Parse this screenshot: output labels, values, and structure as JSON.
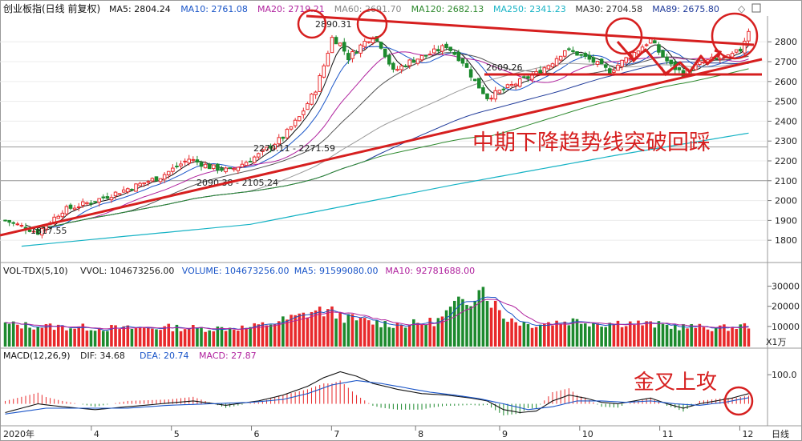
{
  "header": {
    "title": "创业板指(日线 前复权)",
    "ma": [
      {
        "label": "MA5: 2804.24",
        "color": "#111111"
      },
      {
        "label": "MA10: 2761.08",
        "color": "#1a55c8"
      },
      {
        "label": "MA20: 2719.21",
        "color": "#b0229e"
      },
      {
        "label": "MA60: 2691.70",
        "color": "#888888"
      },
      {
        "label": "MA120: 2682.13",
        "color": "#2f8a2f"
      },
      {
        "label": "MA250: 2341.23",
        "color": "#17b3c5"
      },
      {
        "label": "MA30: 2704.58",
        "color": "#333333"
      },
      {
        "label": "MA89: 2675.80",
        "color": "#1f3a9a"
      }
    ]
  },
  "volume_header": {
    "name": "VOL-TDX(5,10)",
    "items": [
      {
        "label": "VVOL: 104673256.00",
        "color": "#222222"
      },
      {
        "label": "VOLUME: 104673256.00",
        "color": "#1a55c8"
      },
      {
        "label": "MA5: 91599080.00",
        "color": "#1a55c8"
      },
      {
        "label": "MA10: 92781688.00",
        "color": "#b0229e"
      }
    ],
    "unit": "X1万"
  },
  "macd_header": {
    "name": "MACD(12,26,9)",
    "items": [
      {
        "label": "DIF: 34.68",
        "color": "#222222"
      },
      {
        "label": "DEA: 20.74",
        "color": "#1a55c8"
      },
      {
        "label": "MACD: 27.87",
        "color": "#b0229e"
      }
    ]
  },
  "annotations": {
    "main_text": "中期下降趋势线突破回踩",
    "macd_text": "金叉上攻",
    "low_label": "1817.55",
    "high_label": "2890.31",
    "mid_label": "2609.26",
    "gap1_label": "2270.11 - 2271.59",
    "gap2_label": "2090.38 - 2105.24"
  },
  "footer": {
    "year_label": "2020年",
    "months": [
      "4",
      "5",
      "6",
      "7",
      "8",
      "9",
      "10",
      "11",
      "12"
    ],
    "period_label": "日线"
  },
  "colors": {
    "up": "#e8292b",
    "down": "#1d8a2e",
    "trend": "#d61f1f",
    "grid": "#e4e4e4",
    "separator": "#9a9a9a"
  },
  "chart_data": [
    {
      "type": "candlestick",
      "title": "创业板指(日线 前复权)",
      "yticks": [
        1800,
        1900,
        2000,
        2100,
        2200,
        2300,
        2400,
        2500,
        2600,
        2700,
        2800
      ],
      "ylim": [
        1720,
        2930
      ],
      "x_months": [
        "4",
        "5",
        "6",
        "7",
        "8",
        "9",
        "10",
        "11",
        "12"
      ],
      "close_anchors": [
        [
          0,
          1900
        ],
        [
          8,
          1840
        ],
        [
          14,
          1950
        ],
        [
          22,
          2000
        ],
        [
          30,
          2060
        ],
        [
          38,
          2120
        ],
        [
          45,
          2210
        ],
        [
          50,
          2170
        ],
        [
          55,
          2150
        ],
        [
          62,
          2230
        ],
        [
          68,
          2320
        ],
        [
          72,
          2420
        ],
        [
          76,
          2560
        ],
        [
          78,
          2680
        ],
        [
          80,
          2820
        ],
        [
          82,
          2790
        ],
        [
          84,
          2720
        ],
        [
          86,
          2760
        ],
        [
          88,
          2800
        ],
        [
          90,
          2830
        ],
        [
          92,
          2780
        ],
        [
          95,
          2650
        ],
        [
          99,
          2700
        ],
        [
          104,
          2740
        ],
        [
          108,
          2780
        ],
        [
          112,
          2700
        ],
        [
          115,
          2600
        ],
        [
          118,
          2520
        ],
        [
          122,
          2560
        ],
        [
          126,
          2600
        ],
        [
          130,
          2640
        ],
        [
          134,
          2700
        ],
        [
          137,
          2760
        ],
        [
          140,
          2740
        ],
        [
          144,
          2700
        ],
        [
          148,
          2650
        ],
        [
          151,
          2700
        ],
        [
          155,
          2760
        ],
        [
          158,
          2810
        ],
        [
          160,
          2750
        ],
        [
          163,
          2680
        ],
        [
          166,
          2640
        ],
        [
          170,
          2690
        ],
        [
          173,
          2710
        ],
        [
          177,
          2720
        ],
        [
          180,
          2760
        ],
        [
          182,
          2860
        ]
      ],
      "labeled_points": {
        "low": 1817.55,
        "high": 2890.31,
        "mid": 2609.26
      },
      "horizontal_levels": [
        2270,
        2100,
        2612
      ],
      "ma250_line": [
        [
          4,
          1770
        ],
        [
          60,
          1880
        ],
        [
          110,
          2080
        ],
        [
          150,
          2230
        ],
        [
          182,
          2340
        ]
      ]
    },
    {
      "type": "bar",
      "title": "VOL-TDX(5,10)",
      "unit": "X1万",
      "yticks": [
        10000,
        20000,
        30000
      ],
      "ylim": [
        0,
        35000
      ],
      "volume_anchors": [
        [
          0,
          11000
        ],
        [
          10,
          10000
        ],
        [
          20,
          9500
        ],
        [
          30,
          9000
        ],
        [
          40,
          9500
        ],
        [
          50,
          9000
        ],
        [
          60,
          9500
        ],
        [
          66,
          12000
        ],
        [
          72,
          15000
        ],
        [
          76,
          18000
        ],
        [
          80,
          17000
        ],
        [
          84,
          14000
        ],
        [
          90,
          12000
        ],
        [
          96,
          11000
        ],
        [
          102,
          11500
        ],
        [
          106,
          13000
        ],
        [
          110,
          20000
        ],
        [
          114,
          24000
        ],
        [
          116,
          32000
        ],
        [
          118,
          26000
        ],
        [
          122,
          15000
        ],
        [
          128,
          11000
        ],
        [
          134,
          12000
        ],
        [
          140,
          13000
        ],
        [
          146,
          11500
        ],
        [
          152,
          12000
        ],
        [
          158,
          11000
        ],
        [
          164,
          10000
        ],
        [
          170,
          9500
        ],
        [
          176,
          9200
        ],
        [
          182,
          10500
        ]
      ]
    },
    {
      "type": "bar",
      "title": "MACD(12,26,9)",
      "yticks": [
        100.0
      ],
      "ylim": [
        -70,
        150
      ],
      "dif_anchors": [
        [
          0,
          -30
        ],
        [
          8,
          0
        ],
        [
          14,
          -10
        ],
        [
          22,
          -20
        ],
        [
          30,
          -10
        ],
        [
          38,
          0
        ],
        [
          46,
          10
        ],
        [
          54,
          -5
        ],
        [
          62,
          10
        ],
        [
          68,
          30
        ],
        [
          74,
          60
        ],
        [
          78,
          90
        ],
        [
          82,
          110
        ],
        [
          86,
          95
        ],
        [
          90,
          70
        ],
        [
          96,
          50
        ],
        [
          102,
          35
        ],
        [
          108,
          30
        ],
        [
          114,
          20
        ],
        [
          118,
          10
        ],
        [
          122,
          -20
        ],
        [
          126,
          -30
        ],
        [
          130,
          -25
        ],
        [
          134,
          10
        ],
        [
          138,
          30
        ],
        [
          142,
          20
        ],
        [
          146,
          5
        ],
        [
          150,
          0
        ],
        [
          154,
          10
        ],
        [
          158,
          20
        ],
        [
          162,
          0
        ],
        [
          166,
          -15
        ],
        [
          170,
          0
        ],
        [
          174,
          10
        ],
        [
          178,
          20
        ],
        [
          182,
          35
        ]
      ],
      "dea_anchors": [
        [
          0,
          -35
        ],
        [
          10,
          -15
        ],
        [
          20,
          -15
        ],
        [
          30,
          -15
        ],
        [
          40,
          -5
        ],
        [
          50,
          0
        ],
        [
          60,
          5
        ],
        [
          68,
          15
        ],
        [
          74,
          35
        ],
        [
          80,
          65
        ],
        [
          86,
          80
        ],
        [
          92,
          70
        ],
        [
          98,
          55
        ],
        [
          104,
          40
        ],
        [
          110,
          30
        ],
        [
          116,
          18
        ],
        [
          122,
          0
        ],
        [
          128,
          -20
        ],
        [
          134,
          -10
        ],
        [
          140,
          10
        ],
        [
          146,
          10
        ],
        [
          152,
          5
        ],
        [
          158,
          10
        ],
        [
          164,
          0
        ],
        [
          170,
          -5
        ],
        [
          176,
          5
        ],
        [
          182,
          21
        ]
      ]
    }
  ]
}
